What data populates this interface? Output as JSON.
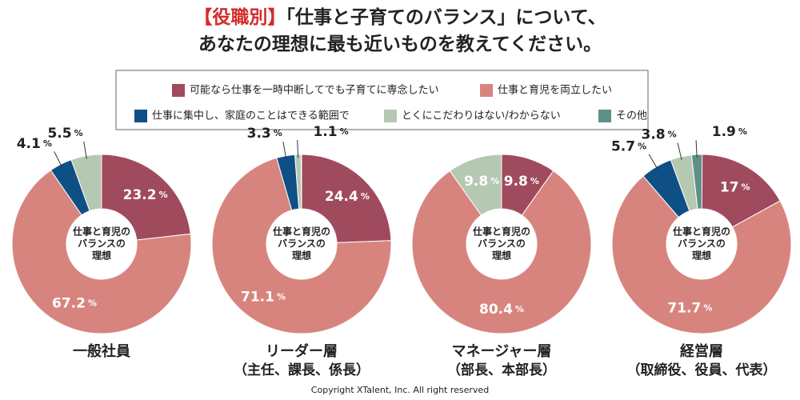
{
  "title_prefix": "【役職別】",
  "title": "「仕事と子育てのバランス」について、",
  "title_line2": "あなたの理想に最も近いものを教えてください。",
  "legend": {
    "categories": [
      "可能なら仕事を一時中断してでも子育てに専念したい",
      "仕事と育児を両立したい",
      "仕事に集中し、家庭のことはできる範囲で",
      "とくにこだわりはない/わからない",
      "その他"
    ],
    "colors": [
      "#a04a5e",
      "#d8847e",
      "#0e4f86",
      "#b5c8b2",
      "#5f9088"
    ]
  },
  "center_label": [
    "仕事と育児の",
    "バランスの",
    "理想"
  ],
  "percent_sign": "%",
  "copyright": "Copyright XTalent, Inc. All right reserved",
  "chart_data": [
    {
      "type": "pie",
      "title": "一般社員",
      "values": [
        23.2,
        67.2,
        4.1,
        5.5,
        null
      ]
    },
    {
      "type": "pie",
      "title": "リーダー層",
      "subtitle": "（主任、課長、係長）",
      "values": [
        24.4,
        71.1,
        3.3,
        1.1,
        null
      ]
    },
    {
      "type": "pie",
      "title": "マネージャー層",
      "subtitle": "（部長、本部長）",
      "values": [
        9.8,
        80.4,
        null,
        9.8,
        null
      ]
    },
    {
      "type": "pie",
      "title": "経営層",
      "subtitle": "（取締役、役員、代表）",
      "values": [
        17,
        71.7,
        5.7,
        3.8,
        1.9
      ]
    }
  ]
}
